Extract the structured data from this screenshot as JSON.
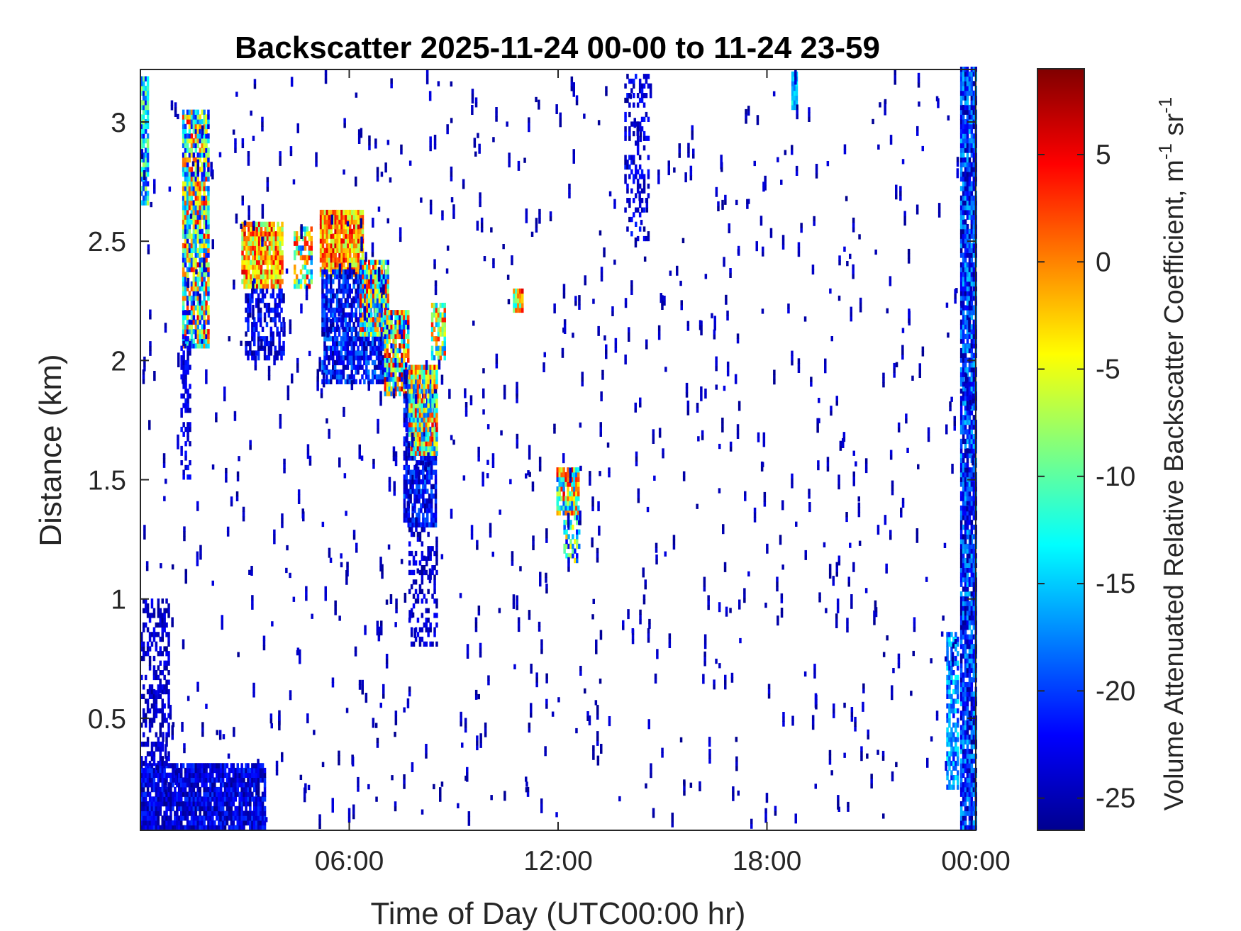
{
  "chart_data": {
    "type": "heatmap",
    "title": "Backscatter 2025-11-24 00-00 to 11-24 23-59",
    "xlabel": "Time of Day (UTC00:00 hr)",
    "ylabel": "Distance (km)",
    "xlim": [
      0,
      24
    ],
    "ylim": [
      0.03,
      3.22
    ],
    "x_ticks": [
      {
        "value": 6,
        "label": "06:00"
      },
      {
        "value": 12,
        "label": "12:00"
      },
      {
        "value": 18,
        "label": "18:00"
      },
      {
        "value": 24,
        "label": "00:00"
      }
    ],
    "y_ticks": [
      {
        "value": 0.5,
        "label": "0.5"
      },
      {
        "value": 1,
        "label": "1"
      },
      {
        "value": 1.5,
        "label": "1.5"
      },
      {
        "value": 2,
        "label": "2"
      },
      {
        "value": 2.5,
        "label": "2.5"
      },
      {
        "value": 3,
        "label": "3"
      }
    ],
    "grid": false,
    "colorbar": {
      "label": "Volume Attenuated Relative Backscatter Coefficient, m-1 sr-1",
      "label_base": "Volume Attenuated Relative Backscatter Coefficient, m",
      "label_sup1": "-1",
      "label_mid": " sr",
      "label_sup2": "-1",
      "colormap": "jet",
      "range": [
        -26.5,
        9
      ],
      "ticks": [
        {
          "value": 5,
          "label": "5"
        },
        {
          "value": 0,
          "label": "0"
        },
        {
          "value": -5,
          "label": "-5"
        },
        {
          "value": -10,
          "label": "-10"
        },
        {
          "value": -15,
          "label": "-15"
        },
        {
          "value": -20,
          "label": "-20"
        },
        {
          "value": -25,
          "label": "-25"
        }
      ]
    },
    "regions": [
      {
        "t0": 0.0,
        "t1": 0.2,
        "h0": 2.65,
        "h1": 3.18,
        "min": -22,
        "max": -6,
        "density": 0.8
      },
      {
        "t0": 1.2,
        "t1": 1.95,
        "h0": 2.05,
        "h1": 3.05,
        "min": -24,
        "max": 5,
        "density": 0.85
      },
      {
        "t0": 1.15,
        "t1": 1.4,
        "h0": 1.5,
        "h1": 2.1,
        "min": -25,
        "max": -21,
        "density": 0.6
      },
      {
        "t0": 2.9,
        "t1": 4.1,
        "h0": 2.3,
        "h1": 2.58,
        "min": -10,
        "max": 6,
        "density": 0.95
      },
      {
        "t0": 3.0,
        "t1": 4.1,
        "h0": 2.0,
        "h1": 2.3,
        "min": -26,
        "max": -20,
        "density": 0.55
      },
      {
        "t0": 4.4,
        "t1": 4.9,
        "h0": 2.3,
        "h1": 2.55,
        "min": -20,
        "max": 5,
        "density": 0.6
      },
      {
        "t0": 5.15,
        "t1": 6.4,
        "h0": 2.35,
        "h1": 2.62,
        "min": -8,
        "max": 6,
        "density": 0.95
      },
      {
        "t0": 5.2,
        "t1": 7.1,
        "h0": 1.9,
        "h1": 2.38,
        "min": -26,
        "max": -17,
        "density": 0.75
      },
      {
        "t0": 6.3,
        "t1": 7.1,
        "h0": 2.1,
        "h1": 2.42,
        "min": -25,
        "max": 6,
        "density": 0.85
      },
      {
        "t0": 7.0,
        "t1": 7.7,
        "h0": 1.85,
        "h1": 2.2,
        "min": -24,
        "max": 7,
        "density": 0.9
      },
      {
        "t0": 7.55,
        "t1": 8.5,
        "h0": 1.3,
        "h1": 1.95,
        "min": -26,
        "max": -18,
        "density": 0.8
      },
      {
        "t0": 7.7,
        "t1": 8.5,
        "h0": 1.6,
        "h1": 1.98,
        "min": -20,
        "max": 6,
        "density": 0.9
      },
      {
        "t0": 7.7,
        "t1": 8.5,
        "h0": 0.8,
        "h1": 1.3,
        "min": -26,
        "max": -22,
        "density": 0.35
      },
      {
        "t0": 8.35,
        "t1": 8.75,
        "h0": 2.0,
        "h1": 2.24,
        "min": -18,
        "max": 6,
        "density": 0.7
      },
      {
        "t0": 10.7,
        "t1": 10.95,
        "h0": 2.2,
        "h1": 2.3,
        "min": -14,
        "max": 6,
        "density": 1.0
      },
      {
        "t0": 11.95,
        "t1": 12.6,
        "h0": 1.35,
        "h1": 1.55,
        "min": -20,
        "max": 6,
        "density": 0.85
      },
      {
        "t0": 12.15,
        "t1": 12.6,
        "h0": 1.15,
        "h1": 1.35,
        "min": -24,
        "max": 0,
        "density": 0.6
      },
      {
        "t0": 13.9,
        "t1": 14.6,
        "h0": 2.5,
        "h1": 3.2,
        "min": -26,
        "max": -21,
        "density": 0.3
      },
      {
        "t0": 18.7,
        "t1": 18.85,
        "h0": 3.05,
        "h1": 3.2,
        "min": -18,
        "max": -12,
        "density": 1.0
      },
      {
        "t0": 0.0,
        "t1": 3.6,
        "h0": 0.03,
        "h1": 0.3,
        "min": -26,
        "max": -20,
        "density": 0.88
      },
      {
        "t0": 0.0,
        "t1": 0.8,
        "h0": 0.3,
        "h1": 1.0,
        "min": -26,
        "max": -22,
        "density": 0.45
      },
      {
        "t0": 23.15,
        "t1": 23.45,
        "h0": 0.2,
        "h1": 0.85,
        "min": -22,
        "max": -13,
        "density": 0.7
      },
      {
        "t0": 23.55,
        "t1": 24.0,
        "h0": 0.03,
        "h1": 3.22,
        "min": -26,
        "max": -15,
        "density": 0.9
      }
    ]
  }
}
